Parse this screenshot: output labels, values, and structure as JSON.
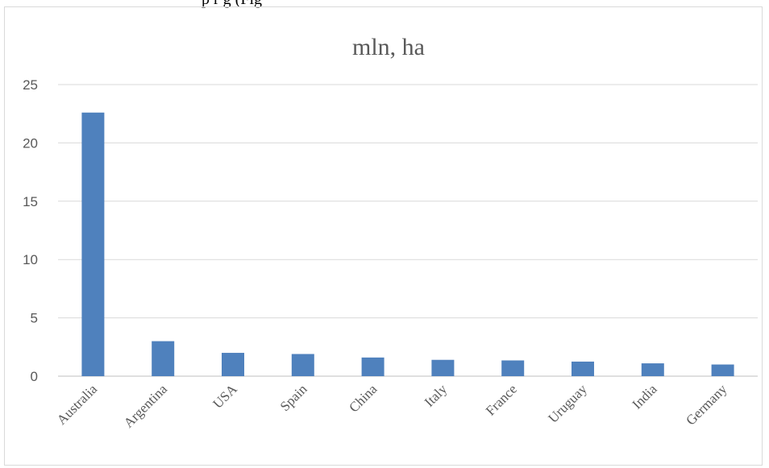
{
  "header_text": "p                 r        g             (Fig",
  "chart_data": {
    "type": "bar",
    "title": "mln, ha",
    "xlabel": "",
    "ylabel": "",
    "categories": [
      "Australia",
      "Argentina",
      "USA",
      "Spain",
      "China",
      "Italy",
      "France",
      "Uruguay",
      "India",
      "Germany"
    ],
    "values": [
      22.6,
      3.0,
      2.0,
      1.9,
      1.6,
      1.4,
      1.35,
      1.25,
      1.1,
      1.0
    ],
    "ylim": [
      0,
      25
    ],
    "yticks": [
      "0",
      "5",
      "10",
      "15",
      "20",
      "25"
    ],
    "grid": true,
    "legend": "none",
    "bar_color": "#4f81bd"
  }
}
